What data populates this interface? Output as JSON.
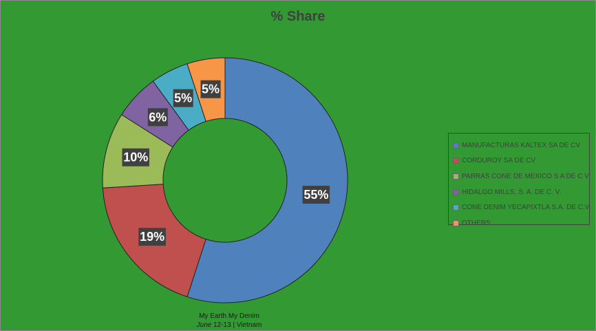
{
  "chart_data": {
    "type": "pie",
    "subtype": "donut",
    "title": "% Share",
    "categories": [
      "MANUFACTURAS KALTEX SA DE CV",
      "CORDUROY SA DE CV",
      "PARRAS CONE DE MEXICO S A DE C V",
      "HIDALGO MILLS, S. A. DE C. V.",
      "CONE DENIM YECAPIXTLA S.A. DE C.V.",
      "OTHERS"
    ],
    "values": [
      55,
      19,
      10,
      6,
      5,
      5
    ],
    "data_labels": [
      "55%",
      "19%",
      "10%",
      "6%",
      "5%",
      "5%"
    ],
    "colors": [
      "#4f81bd",
      "#c0504d",
      "#9bbb59",
      "#8064a2",
      "#4bacc6",
      "#f79646"
    ],
    "legend_position": "right"
  },
  "background_color": "#339933",
  "footer": {
    "line1": "My Earth My Denim",
    "date": "June",
    "rest": " 12-13 | Vietnam"
  }
}
